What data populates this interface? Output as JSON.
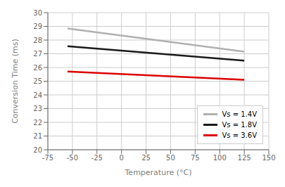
{
  "chart_data": {
    "type": "line",
    "xlabel": "Temperature (°C)",
    "ylabel": "Conversion Time (ms)",
    "x": [
      -55,
      125
    ],
    "series": [
      {
        "name": "Vs = 1.4V",
        "color": "#b0b0b0",
        "values": [
          28.85,
          27.15
        ]
      },
      {
        "name": "Vs = 1.8V",
        "color": "#1a1a1a",
        "values": [
          27.55,
          26.5
        ]
      },
      {
        "name": "Vs = 3.6V",
        "color": "#dd0000",
        "values": [
          25.7,
          25.1
        ]
      }
    ],
    "xlim": [
      -75,
      150
    ],
    "ylim": [
      20,
      30
    ],
    "xticks": [
      -75,
      -50,
      -25,
      0,
      25,
      50,
      75,
      100,
      125,
      150
    ],
    "yticks": [
      20,
      21,
      22,
      23,
      24,
      25,
      26,
      27,
      28,
      29,
      30
    ],
    "grid": true,
    "legend": "lower right"
  }
}
